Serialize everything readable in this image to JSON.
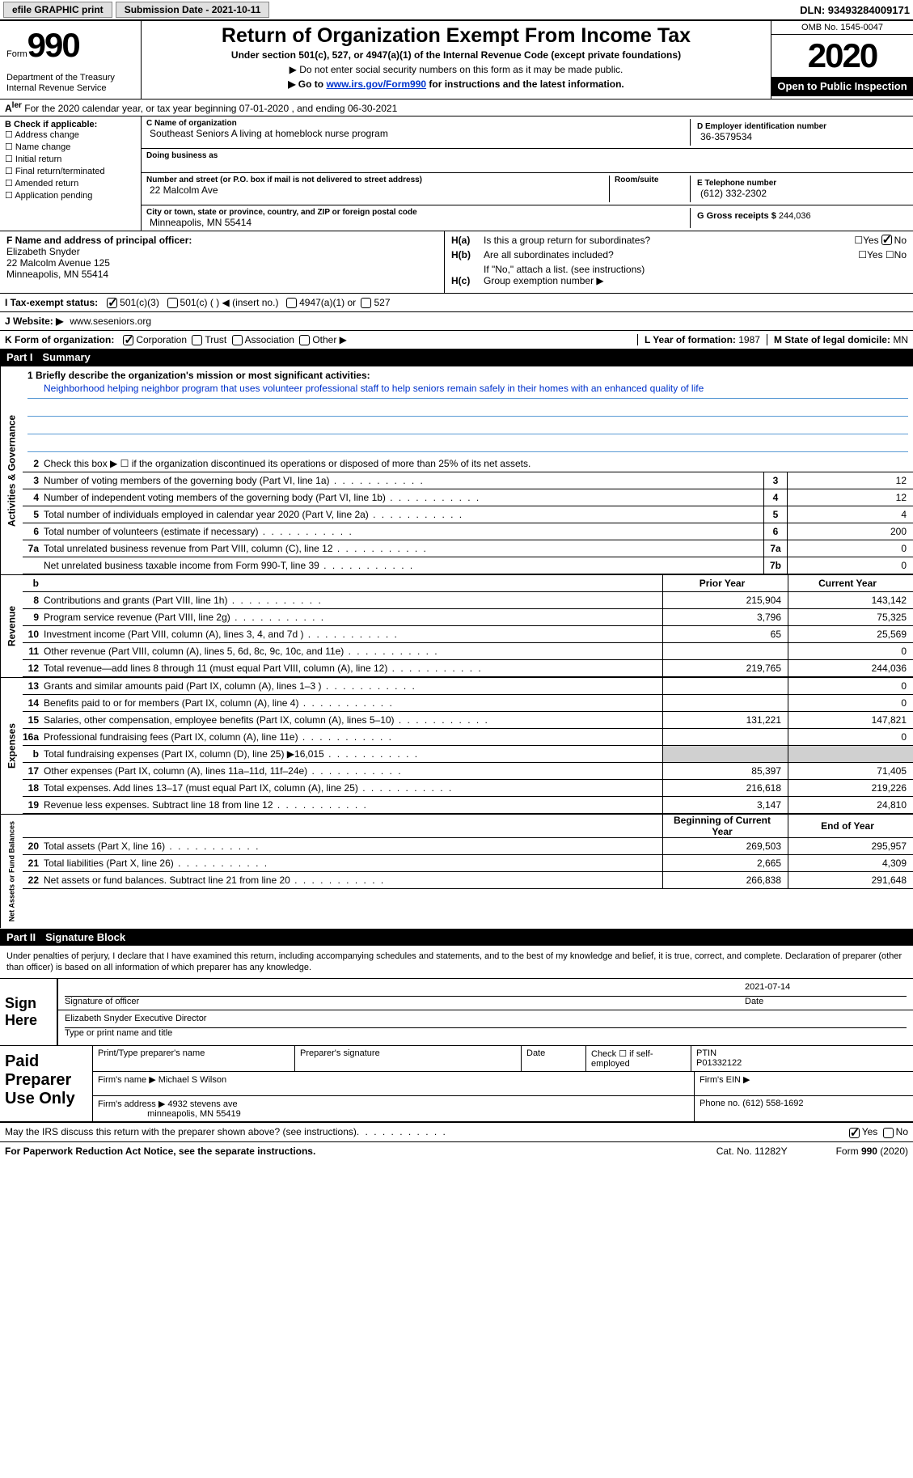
{
  "top": {
    "efile": "efile GRAPHIC print",
    "submission": "Submission Date - 2021-10-11",
    "dln": "DLN: 93493284009171"
  },
  "header": {
    "form_label": "Form",
    "form_num": "990",
    "dept": "Department of the Treasury\nInternal Revenue Service",
    "title": "Return of Organization Exempt From Income Tax",
    "sub1": "Under section 501(c), 527, or 4947(a)(1) of the Internal Revenue Code (except private foundations)",
    "sub2": "▶ Do not enter social security numbers on this form as it may be made public.",
    "sub3a": "▶ Go to ",
    "sub3_link": "www.irs.gov/Form990",
    "sub3b": " for instructions and the latest information.",
    "omb": "OMB No. 1545-0047",
    "year": "2020",
    "inspect": "Open to Public Inspection"
  },
  "a_row": "For the 2020 calendar year, or tax year beginning 07-01-2020   , and ending 06-30-2021",
  "b": {
    "lbl": "B Check if applicable:",
    "items": [
      "Address change",
      "Name change",
      "Initial return",
      "Final return/terminated",
      "Amended return",
      "Application pending"
    ]
  },
  "c": {
    "name_lbl": "C Name of organization",
    "name": "Southeast Seniors A living at homeblock nurse program",
    "dba_lbl": "Doing business as",
    "dba": "",
    "addr_lbl": "Number and street (or P.O. box if mail is not delivered to street address)",
    "room_lbl": "Room/suite",
    "addr": "22 Malcolm Ave",
    "city_lbl": "City or town, state or province, country, and ZIP or foreign postal code",
    "city": "Minneapolis, MN  55414"
  },
  "d": {
    "ein_lbl": "D Employer identification number",
    "ein": "36-3579534",
    "tel_lbl": "E Telephone number",
    "tel": "(612) 332-2302",
    "gross_lbl": "G Gross receipts $",
    "gross": "244,036"
  },
  "f": {
    "lbl": "F  Name and address of principal officer:",
    "name": "Elizabeth Snyder",
    "addr1": "22 Malcolm Avenue 125",
    "addr2": "Minneapolis, MN  55414"
  },
  "h": {
    "ha": "H(a)  Is this a group return for subordinates?",
    "hb": "H(b)  Are all subordinates included?",
    "hb_note": "If \"No,\" attach a list. (see instructions)",
    "hc": "H(c)  Group exemption number ▶"
  },
  "i": {
    "lbl": "I   Tax-exempt status:",
    "o1": "501(c)(3)",
    "o2": "501(c) (  ) ◀ (insert no.)",
    "o3": "4947(a)(1) or",
    "o4": "527"
  },
  "j": {
    "lbl": "J   Website: ▶",
    "val": "www.seseniors.org"
  },
  "k": {
    "lbl": "K Form of organization:",
    "corp": "Corporation",
    "trust": "Trust",
    "assoc": "Association",
    "other": "Other ▶"
  },
  "l": {
    "lbl": "L Year of formation:",
    "val": "1987"
  },
  "m": {
    "lbl": "M State of legal domicile:",
    "val": "MN"
  },
  "part1": {
    "num": "Part I",
    "title": "Summary"
  },
  "mission": {
    "lbl": "1   Briefly describe the organization's mission or most significant activities:",
    "text": "Neighborhood helping neighbor program that uses volunteer professional staff to help seniors remain safely in their homes with an enhanced quality of life"
  },
  "gov_rows": [
    {
      "n": "2",
      "t": "Check this box ▶ ☐  if the organization discontinued its operations or disposed of more than 25% of its net assets."
    },
    {
      "n": "3",
      "t": "Number of voting members of the governing body (Part VI, line 1a)",
      "b": "3",
      "v": "12"
    },
    {
      "n": "4",
      "t": "Number of independent voting members of the governing body (Part VI, line 1b)",
      "b": "4",
      "v": "12"
    },
    {
      "n": "5",
      "t": "Total number of individuals employed in calendar year 2020 (Part V, line 2a)",
      "b": "5",
      "v": "4"
    },
    {
      "n": "6",
      "t": "Total number of volunteers (estimate if necessary)",
      "b": "6",
      "v": "200"
    },
    {
      "n": "7a",
      "t": "Total unrelated business revenue from Part VIII, column (C), line 12",
      "b": "7a",
      "v": "0"
    },
    {
      "n": "",
      "t": "Net unrelated business taxable income from Form 990-T, line 39",
      "b": "7b",
      "v": "0"
    }
  ],
  "col_hdr": {
    "prior": "Prior Year",
    "current": "Current Year"
  },
  "rev_rows": [
    {
      "n": "8",
      "t": "Contributions and grants (Part VIII, line 1h)",
      "p": "215,904",
      "c": "143,142"
    },
    {
      "n": "9",
      "t": "Program service revenue (Part VIII, line 2g)",
      "p": "3,796",
      "c": "75,325"
    },
    {
      "n": "10",
      "t": "Investment income (Part VIII, column (A), lines 3, 4, and 7d )",
      "p": "65",
      "c": "25,569"
    },
    {
      "n": "11",
      "t": "Other revenue (Part VIII, column (A), lines 5, 6d, 8c, 9c, 10c, and 11e)",
      "p": "",
      "c": "0"
    },
    {
      "n": "12",
      "t": "Total revenue—add lines 8 through 11 (must equal Part VIII, column (A), line 12)",
      "p": "219,765",
      "c": "244,036"
    }
  ],
  "exp_rows": [
    {
      "n": "13",
      "t": "Grants and similar amounts paid (Part IX, column (A), lines 1–3 )",
      "p": "",
      "c": "0"
    },
    {
      "n": "14",
      "t": "Benefits paid to or for members (Part IX, column (A), line 4)",
      "p": "",
      "c": "0"
    },
    {
      "n": "15",
      "t": "Salaries, other compensation, employee benefits (Part IX, column (A), lines 5–10)",
      "p": "131,221",
      "c": "147,821"
    },
    {
      "n": "16a",
      "t": "Professional fundraising fees (Part IX, column (A), line 11e)",
      "p": "",
      "c": "0"
    },
    {
      "n": "b",
      "t": "Total fundraising expenses (Part IX, column (D), line 25) ▶16,015",
      "p": "gray",
      "c": "gray"
    },
    {
      "n": "17",
      "t": "Other expenses (Part IX, column (A), lines 11a–11d, 11f–24e)",
      "p": "85,397",
      "c": "71,405"
    },
    {
      "n": "18",
      "t": "Total expenses. Add lines 13–17 (must equal Part IX, column (A), line 25)",
      "p": "216,618",
      "c": "219,226"
    },
    {
      "n": "19",
      "t": "Revenue less expenses. Subtract line 18 from line 12",
      "p": "3,147",
      "c": "24,810"
    }
  ],
  "na_hdr": {
    "beg": "Beginning of Current Year",
    "end": "End of Year"
  },
  "na_rows": [
    {
      "n": "20",
      "t": "Total assets (Part X, line 16)",
      "p": "269,503",
      "c": "295,957"
    },
    {
      "n": "21",
      "t": "Total liabilities (Part X, line 26)",
      "p": "2,665",
      "c": "4,309"
    },
    {
      "n": "22",
      "t": "Net assets or fund balances. Subtract line 21 from line 20",
      "p": "266,838",
      "c": "291,648"
    }
  ],
  "part2": {
    "num": "Part II",
    "title": "Signature Block"
  },
  "sig_decl": "Under penalties of perjury, I declare that I have examined this return, including accompanying schedules and statements, and to the best of my knowledge and belief, it is true, correct, and complete. Declaration of preparer (other than officer) is based on all information of which preparer has any knowledge.",
  "sign": {
    "lbl": "Sign Here",
    "sig_lbl": "Signature of officer",
    "date_lbl": "Date",
    "date": "2021-07-14",
    "name": "Elizabeth Snyder  Executive Director",
    "name_lbl": "Type or print name and title"
  },
  "paid": {
    "lbl": "Paid Preparer Use Only",
    "pname_lbl": "Print/Type preparer's name",
    "psig_lbl": "Preparer's signature",
    "pdate_lbl": "Date",
    "pcheck": "Check ☐ if self-employed",
    "ptin_lbl": "PTIN",
    "ptin": "P01332122",
    "firm_name_lbl": "Firm's name   ▶",
    "firm_name": "Michael S Wilson",
    "firm_ein_lbl": "Firm's EIN ▶",
    "firm_addr_lbl": "Firm's address ▶",
    "firm_addr1": "4932 stevens ave",
    "firm_addr2": "minneapolis, MN  55419",
    "phone_lbl": "Phone no.",
    "phone": "(612) 558-1692"
  },
  "discuss": "May the IRS discuss this return with the preparer shown above? (see instructions)",
  "footer": {
    "left": "For Paperwork Reduction Act Notice, see the separate instructions.",
    "mid": "Cat. No. 11282Y",
    "right": "Form 990 (2020)"
  },
  "vtabs": {
    "gov": "Activities & Governance",
    "rev": "Revenue",
    "exp": "Expenses",
    "na": "Net Assets or Fund Balances"
  }
}
